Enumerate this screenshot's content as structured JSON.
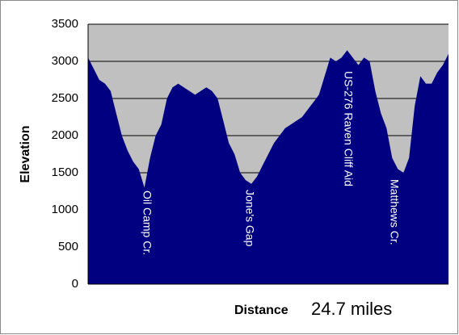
{
  "chart_data": {
    "type": "area",
    "y_label": "Elevation",
    "x_label": "Distance",
    "x_note": "24.7 miles",
    "values": [
      3050,
      2900,
      2750,
      2700,
      2600,
      2300,
      2000,
      1800,
      1650,
      1550,
      1300,
      1700,
      2000,
      2150,
      2500,
      2650,
      2700,
      2650,
      2600,
      2550,
      2600,
      2650,
      2600,
      2500,
      2200,
      1900,
      1750,
      1500,
      1400,
      1350,
      1450,
      1600,
      1750,
      1900,
      2000,
      2100,
      2150,
      2200,
      2250,
      2350,
      2450,
      2550,
      2800,
      3050,
      3000,
      3050,
      3150,
      3050,
      2950,
      3050,
      3000,
      2600,
      2300,
      2100,
      1700,
      1550,
      1500,
      1700,
      2400,
      2800,
      2700,
      2700,
      2850,
      2950,
      3100
    ],
    "color": "#000080",
    "plot_background": "#c0c0c0",
    "ylim": [
      0,
      3500
    ],
    "yticks": [
      0,
      500,
      1000,
      1500,
      2000,
      2500,
      3000,
      3500
    ],
    "grid": true,
    "annotations": [
      "Oil Camp Cr.",
      "Jone's Gap",
      "US-276 Raven Cliff Aid",
      "Matthews Cr."
    ]
  }
}
